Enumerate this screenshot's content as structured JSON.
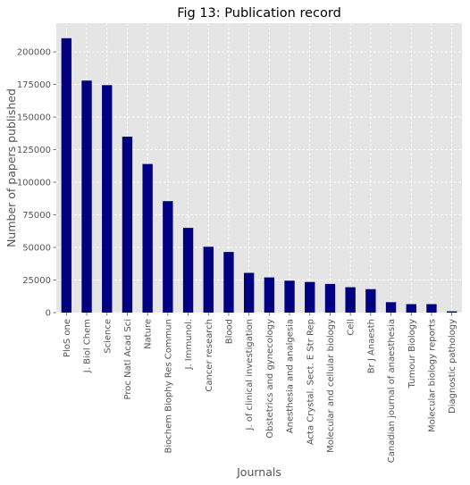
{
  "chart_data": {
    "type": "bar",
    "title": "Fig 13: Publication record",
    "xlabel": "Journals",
    "ylabel": "Number of papers published",
    "categories": [
      "PloS one",
      "J. Biol Chem",
      "Science",
      "Proc Natl Acad Sci",
      "Nature",
      "Biochem Biophy Res Commun",
      "J. Immunol.",
      "Cancer research",
      "Blood",
      "J. of clinical investigation",
      "Obstetrics and gynecology",
      "Anesthesia and analgesia",
      "Acta Crystal. Sect. E Str Rep",
      "Molecular and cellular biology",
      "Cell",
      "Br J Anaesth",
      "Canadian journal of anaesthesia",
      "Tumour Biology",
      "Molecular biology reports",
      "Diagnostic pathology"
    ],
    "values": [
      210500,
      178000,
      174500,
      135000,
      114000,
      85500,
      65000,
      50500,
      46500,
      30500,
      27000,
      24500,
      23500,
      22000,
      19500,
      18000,
      8000,
      6500,
      6500,
      1000
    ],
    "ylim": [
      0,
      222000
    ],
    "yticks": [
      0,
      25000,
      50000,
      75000,
      100000,
      125000,
      150000,
      175000,
      200000
    ],
    "grid": true,
    "colors": {
      "bar": "#000080",
      "plot_background": "#e5e5e5",
      "grid": "#ffffff"
    }
  }
}
